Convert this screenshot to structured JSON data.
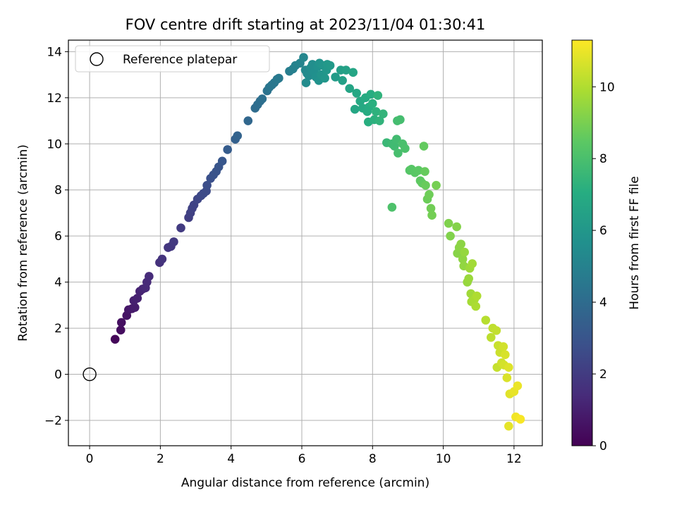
{
  "chart_data": {
    "type": "scatter",
    "title": "FOV centre drift starting at 2023/11/04 01:30:41",
    "xlabel": "Angular distance from reference (arcmin)",
    "ylabel": "Rotation from reference (arcmin)",
    "xlim": [
      -0.6,
      12.8
    ],
    "ylim": [
      -3.1,
      14.5
    ],
    "x_ticks": [
      0,
      2,
      4,
      6,
      8,
      10,
      12
    ],
    "y_ticks": [
      -2,
      0,
      2,
      4,
      6,
      8,
      10,
      12,
      14
    ],
    "grid": true,
    "legend": {
      "position": "top-left",
      "entries": [
        "Reference platepar"
      ]
    },
    "reference_point": {
      "x": 0,
      "y": 0,
      "marker": "open-circle"
    },
    "colorbar": {
      "label": "Hours from first FF file",
      "colormap": "viridis",
      "range": [
        0,
        11.3
      ],
      "ticks": [
        0,
        2,
        4,
        6,
        8,
        10
      ]
    },
    "series": [
      {
        "points": [
          [
            0.72,
            1.52,
            0.2
          ],
          [
            0.88,
            1.92,
            0.4
          ],
          [
            0.9,
            2.25,
            0.5
          ],
          [
            1.05,
            2.55,
            0.6
          ],
          [
            1.1,
            2.8,
            0.7
          ],
          [
            1.2,
            2.85,
            0.8
          ],
          [
            1.28,
            2.9,
            0.9
          ],
          [
            1.25,
            3.2,
            1.0
          ],
          [
            1.35,
            3.3,
            1.05
          ],
          [
            1.42,
            3.6,
            1.1
          ],
          [
            1.5,
            3.7,
            1.2
          ],
          [
            1.58,
            3.75,
            1.3
          ],
          [
            1.62,
            4.0,
            1.35
          ],
          [
            1.68,
            4.25,
            1.4
          ],
          [
            1.98,
            4.85,
            1.6
          ],
          [
            2.05,
            5.0,
            1.7
          ],
          [
            2.22,
            5.5,
            1.8
          ],
          [
            2.3,
            5.55,
            1.85
          ],
          [
            2.38,
            5.75,
            1.9
          ],
          [
            2.58,
            6.35,
            2.0
          ],
          [
            2.8,
            6.8,
            2.1
          ],
          [
            2.85,
            7.0,
            2.2
          ],
          [
            2.9,
            7.2,
            2.25
          ],
          [
            2.95,
            7.35,
            2.3
          ],
          [
            3.05,
            7.6,
            2.4
          ],
          [
            3.15,
            7.75,
            2.5
          ],
          [
            3.22,
            7.85,
            2.55
          ],
          [
            3.3,
            7.95,
            2.6
          ],
          [
            3.32,
            8.2,
            2.7
          ],
          [
            3.42,
            8.5,
            2.8
          ],
          [
            3.5,
            8.65,
            2.9
          ],
          [
            3.58,
            8.8,
            2.95
          ],
          [
            3.65,
            9.0,
            3.0
          ],
          [
            3.75,
            9.25,
            3.1
          ],
          [
            3.9,
            9.75,
            3.3
          ],
          [
            4.12,
            10.2,
            3.5
          ],
          [
            4.18,
            10.35,
            3.6
          ],
          [
            4.48,
            11.0,
            3.8
          ],
          [
            4.68,
            11.55,
            4.0
          ],
          [
            4.75,
            11.7,
            4.05
          ],
          [
            4.82,
            11.85,
            4.1
          ],
          [
            4.88,
            11.95,
            4.15
          ],
          [
            5.02,
            12.3,
            4.3
          ],
          [
            5.08,
            12.45,
            4.4
          ],
          [
            5.15,
            12.55,
            4.45
          ],
          [
            5.22,
            12.65,
            4.5
          ],
          [
            5.3,
            12.8,
            4.55
          ],
          [
            5.35,
            12.85,
            4.6
          ],
          [
            5.65,
            13.15,
            4.8
          ],
          [
            5.75,
            13.25,
            4.9
          ],
          [
            5.82,
            13.4,
            5.0
          ],
          [
            5.95,
            13.5,
            5.1
          ],
          [
            6.05,
            13.75,
            5.2
          ],
          [
            6.1,
            13.2,
            5.3
          ],
          [
            6.15,
            13.05,
            5.35
          ],
          [
            6.2,
            12.95,
            5.4
          ],
          [
            6.12,
            12.65,
            5.45
          ],
          [
            6.25,
            13.3,
            5.5
          ],
          [
            6.3,
            13.45,
            5.55
          ],
          [
            6.35,
            13.1,
            5.6
          ],
          [
            6.4,
            12.9,
            5.65
          ],
          [
            6.45,
            13.35,
            5.7
          ],
          [
            6.48,
            12.75,
            5.75
          ],
          [
            6.5,
            13.5,
            5.8
          ],
          [
            6.55,
            13.0,
            5.85
          ],
          [
            6.6,
            13.4,
            5.9
          ],
          [
            6.65,
            12.85,
            5.95
          ],
          [
            6.7,
            13.2,
            6.0
          ],
          [
            6.72,
            13.45,
            6.05
          ],
          [
            6.8,
            13.4,
            6.1
          ],
          [
            6.95,
            12.9,
            6.2
          ],
          [
            7.1,
            13.2,
            6.4
          ],
          [
            7.15,
            12.75,
            6.45
          ],
          [
            7.25,
            13.2,
            6.5
          ],
          [
            7.35,
            12.4,
            6.6
          ],
          [
            7.45,
            13.1,
            6.65
          ],
          [
            7.5,
            11.5,
            6.7
          ],
          [
            7.55,
            12.2,
            6.75
          ],
          [
            7.65,
            11.85,
            6.8
          ],
          [
            7.72,
            11.55,
            6.85
          ],
          [
            7.8,
            12.0,
            6.9
          ],
          [
            7.85,
            11.4,
            6.95
          ],
          [
            7.9,
            11.6,
            7.0
          ],
          [
            7.95,
            12.15,
            7.05
          ],
          [
            7.88,
            10.95,
            7.1
          ],
          [
            8.0,
            11.75,
            7.15
          ],
          [
            8.05,
            11.05,
            7.2
          ],
          [
            8.1,
            11.4,
            7.25
          ],
          [
            8.15,
            12.1,
            7.3
          ],
          [
            8.2,
            11.0,
            7.35
          ],
          [
            8.3,
            11.3,
            7.4
          ],
          [
            8.4,
            10.05,
            7.6
          ],
          [
            8.55,
            10.0,
            7.7
          ],
          [
            8.62,
            9.9,
            7.75
          ],
          [
            8.68,
            10.2,
            7.8
          ],
          [
            8.7,
            11.0,
            7.85
          ],
          [
            8.78,
            11.05,
            7.9
          ],
          [
            8.72,
            9.6,
            7.95
          ],
          [
            8.85,
            10.0,
            8.0
          ],
          [
            8.92,
            9.8,
            8.05
          ],
          [
            8.55,
            7.25,
            8.1
          ],
          [
            9.05,
            8.85,
            8.3
          ],
          [
            9.1,
            8.9,
            8.35
          ],
          [
            9.2,
            8.75,
            8.4
          ],
          [
            9.3,
            8.85,
            8.45
          ],
          [
            9.35,
            8.4,
            8.5
          ],
          [
            9.4,
            8.3,
            8.55
          ],
          [
            9.45,
            9.9,
            8.6
          ],
          [
            9.48,
            8.8,
            8.65
          ],
          [
            9.5,
            8.2,
            8.7
          ],
          [
            9.55,
            7.6,
            8.75
          ],
          [
            9.6,
            7.8,
            8.8
          ],
          [
            9.65,
            7.2,
            8.85
          ],
          [
            9.68,
            6.9,
            8.9
          ],
          [
            9.8,
            8.2,
            8.95
          ],
          [
            10.15,
            6.55,
            9.1
          ],
          [
            10.2,
            6.0,
            9.15
          ],
          [
            10.38,
            6.4,
            9.2
          ],
          [
            10.4,
            5.25,
            9.25
          ],
          [
            10.45,
            5.5,
            9.3
          ],
          [
            10.5,
            5.65,
            9.35
          ],
          [
            10.55,
            5.0,
            9.4
          ],
          [
            10.58,
            4.7,
            9.45
          ],
          [
            10.6,
            5.3,
            9.5
          ],
          [
            10.68,
            4.0,
            9.55
          ],
          [
            10.72,
            4.15,
            9.6
          ],
          [
            10.75,
            4.6,
            9.65
          ],
          [
            10.78,
            3.5,
            9.7
          ],
          [
            10.82,
            4.8,
            9.75
          ],
          [
            10.8,
            3.15,
            9.8
          ],
          [
            10.88,
            3.25,
            9.85
          ],
          [
            10.92,
            2.95,
            9.9
          ],
          [
            10.95,
            3.4,
            9.95
          ],
          [
            11.2,
            2.35,
            10.1
          ],
          [
            11.35,
            1.6,
            10.2
          ],
          [
            11.4,
            2.0,
            10.25
          ],
          [
            11.5,
            1.9,
            10.3
          ],
          [
            11.52,
            0.3,
            10.35
          ],
          [
            11.55,
            1.25,
            10.4
          ],
          [
            11.6,
            0.95,
            10.45
          ],
          [
            11.65,
            0.5,
            10.5
          ],
          [
            11.7,
            1.2,
            10.55
          ],
          [
            11.72,
            0.4,
            10.6
          ],
          [
            11.75,
            0.85,
            10.65
          ],
          [
            11.8,
            -0.15,
            10.7
          ],
          [
            11.85,
            0.3,
            10.75
          ],
          [
            11.88,
            -0.85,
            10.8
          ],
          [
            11.85,
            -2.25,
            10.9
          ],
          [
            12.0,
            -0.75,
            10.95
          ],
          [
            12.1,
            -0.5,
            11.0
          ],
          [
            12.05,
            -1.85,
            11.1
          ],
          [
            12.18,
            -1.95,
            11.2
          ]
        ]
      }
    ]
  }
}
